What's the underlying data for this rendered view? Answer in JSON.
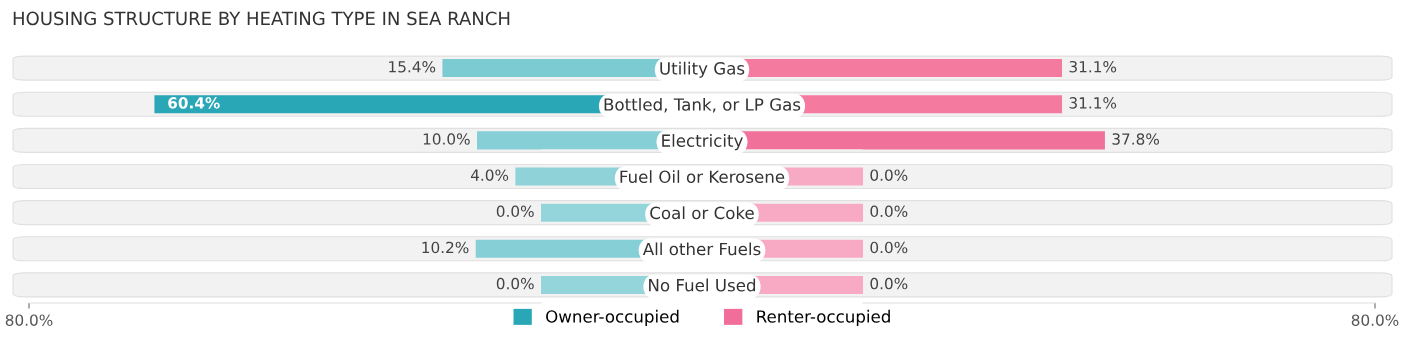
{
  "chart_data": [
    {
      "type": "bar",
      "orientation": "horizontal",
      "title": "HOUSING STRUCTURE BY HEATING TYPE IN SEA RANCH",
      "categories": [
        "Utility Gas",
        "Bottled, Tank, or LP Gas",
        "Electricity",
        "Fuel Oil or Kerosene",
        "Coal or Coke",
        "All other Fuels",
        "No Fuel Used"
      ],
      "series": [
        {
          "name": "Owner-occupied",
          "color": "#2aa7b7",
          "colors": [
            "#7ccbd3",
            "#2aa7b7",
            "#86cfd6",
            "#8fd3d9",
            "#93d5db",
            "#86cfd6",
            "#93d5db"
          ],
          "values": [
            15.4,
            60.4,
            10.0,
            4.0,
            0.0,
            10.2,
            0.0
          ],
          "value_labels": [
            "15.4%",
            "60.4%",
            "10.0%",
            "4.0%",
            "0.0%",
            "10.2%",
            "0.0%"
          ]
        }
      ],
      "xlim": [
        80,
        0
      ],
      "xticks": [
        {
          "value": 80,
          "label": "80.0%"
        }
      ],
      "legend": "bottom",
      "grid": false
    },
    {
      "type": "bar",
      "orientation": "horizontal",
      "categories": [
        null,
        null,
        null,
        null,
        null,
        null,
        null
      ],
      "series": [
        {
          "name": "Renter-occupied",
          "color": "#f06e99",
          "colors": [
            "#f47aa0",
            "#f47aa0",
            "#f0719a",
            "#f8aac4",
            "#f8aac4",
            "#f8aac4",
            "#f8aac4"
          ],
          "values": [
            31.1,
            31.1,
            37.8,
            0.0,
            0.0,
            0.0,
            0.0
          ],
          "value_labels": [
            "31.1%",
            "31.1%",
            "37.8%",
            "0.0%",
            "0.0%",
            "0.0%",
            "0.0%"
          ]
        }
      ],
      "xlim": [
        0,
        80
      ],
      "xticks": [
        {
          "value": 80,
          "label": "80.0%"
        }
      ],
      "legend": "bottom",
      "grid": false
    }
  ]
}
